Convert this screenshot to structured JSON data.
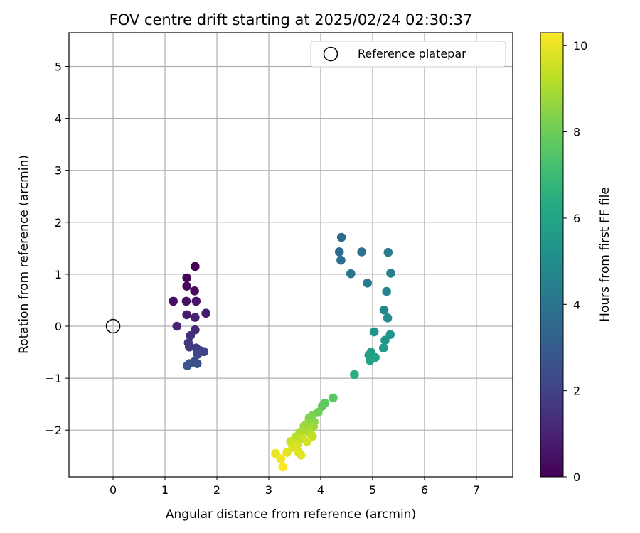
{
  "chart_data": {
    "type": "scatter",
    "title": "FOV centre drift starting at 2025/02/24 02:30:37",
    "xlabel": "Angular distance from reference (arcmin)",
    "ylabel": "Rotation from reference (arcmin)",
    "xlim": [
      -0.85,
      7.7
    ],
    "ylim": [
      -2.9,
      5.65
    ],
    "xticks": [
      0,
      1,
      2,
      3,
      4,
      5,
      6,
      7
    ],
    "yticks": [
      -2,
      -1,
      0,
      1,
      2,
      3,
      4,
      5
    ],
    "grid": true,
    "legend": {
      "position": "top-right",
      "entries": [
        "Reference platepar"
      ]
    },
    "reference_point": {
      "x": 0,
      "y": 0,
      "label": "Reference platepar"
    },
    "colorbar": {
      "label": "Hours from first FF file",
      "range": [
        0,
        10.3
      ],
      "ticks": [
        0,
        2,
        4,
        6,
        8,
        10
      ],
      "colormap": "viridis"
    },
    "points": [
      {
        "x": 1.58,
        "y": 1.15,
        "c": 0.0
      },
      {
        "x": 1.42,
        "y": 0.93,
        "c": 0.1
      },
      {
        "x": 1.42,
        "y": 0.77,
        "c": 0.2
      },
      {
        "x": 1.57,
        "y": 0.68,
        "c": 0.3
      },
      {
        "x": 1.16,
        "y": 0.48,
        "c": 0.4
      },
      {
        "x": 1.41,
        "y": 0.48,
        "c": 0.5
      },
      {
        "x": 1.6,
        "y": 0.48,
        "c": 0.6
      },
      {
        "x": 1.42,
        "y": 0.22,
        "c": 0.7
      },
      {
        "x": 1.79,
        "y": 0.25,
        "c": 0.8
      },
      {
        "x": 1.58,
        "y": 0.17,
        "c": 0.9
      },
      {
        "x": 1.23,
        "y": 0.0,
        "c": 1.0
      },
      {
        "x": 1.58,
        "y": -0.07,
        "c": 1.2
      },
      {
        "x": 1.49,
        "y": -0.18,
        "c": 1.4
      },
      {
        "x": 1.45,
        "y": -0.32,
        "c": 1.6
      },
      {
        "x": 1.47,
        "y": -0.4,
        "c": 1.7
      },
      {
        "x": 1.6,
        "y": -0.42,
        "c": 1.8
      },
      {
        "x": 1.68,
        "y": -0.47,
        "c": 1.9
      },
      {
        "x": 1.75,
        "y": -0.49,
        "c": 2.0
      },
      {
        "x": 1.63,
        "y": -0.54,
        "c": 2.2
      },
      {
        "x": 1.57,
        "y": -0.68,
        "c": 2.4
      },
      {
        "x": 1.47,
        "y": -0.72,
        "c": 2.5
      },
      {
        "x": 1.62,
        "y": -0.72,
        "c": 2.6
      },
      {
        "x": 1.43,
        "y": -0.76,
        "c": 2.7
      },
      {
        "x": 4.4,
        "y": 1.71,
        "c": 3.5
      },
      {
        "x": 4.36,
        "y": 1.43,
        "c": 3.6
      },
      {
        "x": 4.39,
        "y": 1.27,
        "c": 3.7
      },
      {
        "x": 4.79,
        "y": 1.43,
        "c": 3.8
      },
      {
        "x": 4.58,
        "y": 1.01,
        "c": 3.9
      },
      {
        "x": 4.9,
        "y": 0.83,
        "c": 4.1
      },
      {
        "x": 5.3,
        "y": 1.42,
        "c": 4.3
      },
      {
        "x": 5.35,
        "y": 1.02,
        "c": 4.4
      },
      {
        "x": 5.27,
        "y": 0.67,
        "c": 4.6
      },
      {
        "x": 5.22,
        "y": 0.31,
        "c": 4.8
      },
      {
        "x": 5.29,
        "y": 0.16,
        "c": 5.0
      },
      {
        "x": 5.03,
        "y": -0.11,
        "c": 5.2
      },
      {
        "x": 5.34,
        "y": -0.16,
        "c": 5.3
      },
      {
        "x": 5.24,
        "y": -0.27,
        "c": 5.4
      },
      {
        "x": 5.21,
        "y": -0.42,
        "c": 5.6
      },
      {
        "x": 4.97,
        "y": -0.5,
        "c": 5.7
      },
      {
        "x": 4.93,
        "y": -0.56,
        "c": 5.8
      },
      {
        "x": 5.05,
        "y": -0.6,
        "c": 5.9
      },
      {
        "x": 4.95,
        "y": -0.66,
        "c": 6.0
      },
      {
        "x": 4.65,
        "y": -0.93,
        "c": 6.4
      },
      {
        "x": 4.24,
        "y": -1.38,
        "c": 7.6
      },
      {
        "x": 4.08,
        "y": -1.48,
        "c": 7.7
      },
      {
        "x": 4.03,
        "y": -1.54,
        "c": 7.8
      },
      {
        "x": 3.95,
        "y": -1.66,
        "c": 8.0
      },
      {
        "x": 3.84,
        "y": -1.72,
        "c": 8.2
      },
      {
        "x": 3.78,
        "y": -1.77,
        "c": 8.3
      },
      {
        "x": 3.87,
        "y": -1.84,
        "c": 8.4
      },
      {
        "x": 3.74,
        "y": -1.88,
        "c": 8.6
      },
      {
        "x": 3.68,
        "y": -1.92,
        "c": 8.7
      },
      {
        "x": 3.86,
        "y": -1.93,
        "c": 8.8
      },
      {
        "x": 3.72,
        "y": -2.0,
        "c": 8.9
      },
      {
        "x": 3.6,
        "y": -2.04,
        "c": 9.0
      },
      {
        "x": 3.8,
        "y": -2.06,
        "c": 9.1
      },
      {
        "x": 3.52,
        "y": -2.13,
        "c": 9.2
      },
      {
        "x": 3.84,
        "y": -2.12,
        "c": 9.3
      },
      {
        "x": 3.65,
        "y": -2.16,
        "c": 9.4
      },
      {
        "x": 3.42,
        "y": -2.22,
        "c": 9.5
      },
      {
        "x": 3.74,
        "y": -2.22,
        "c": 9.6
      },
      {
        "x": 3.55,
        "y": -2.28,
        "c": 9.6
      },
      {
        "x": 3.46,
        "y": -2.33,
        "c": 9.7
      },
      {
        "x": 3.57,
        "y": -2.42,
        "c": 9.8
      },
      {
        "x": 3.35,
        "y": -2.43,
        "c": 9.9
      },
      {
        "x": 3.62,
        "y": -2.48,
        "c": 9.9
      },
      {
        "x": 3.13,
        "y": -2.45,
        "c": 10.0
      },
      {
        "x": 3.23,
        "y": -2.55,
        "c": 10.1
      },
      {
        "x": 3.27,
        "y": -2.71,
        "c": 10.3
      }
    ]
  }
}
